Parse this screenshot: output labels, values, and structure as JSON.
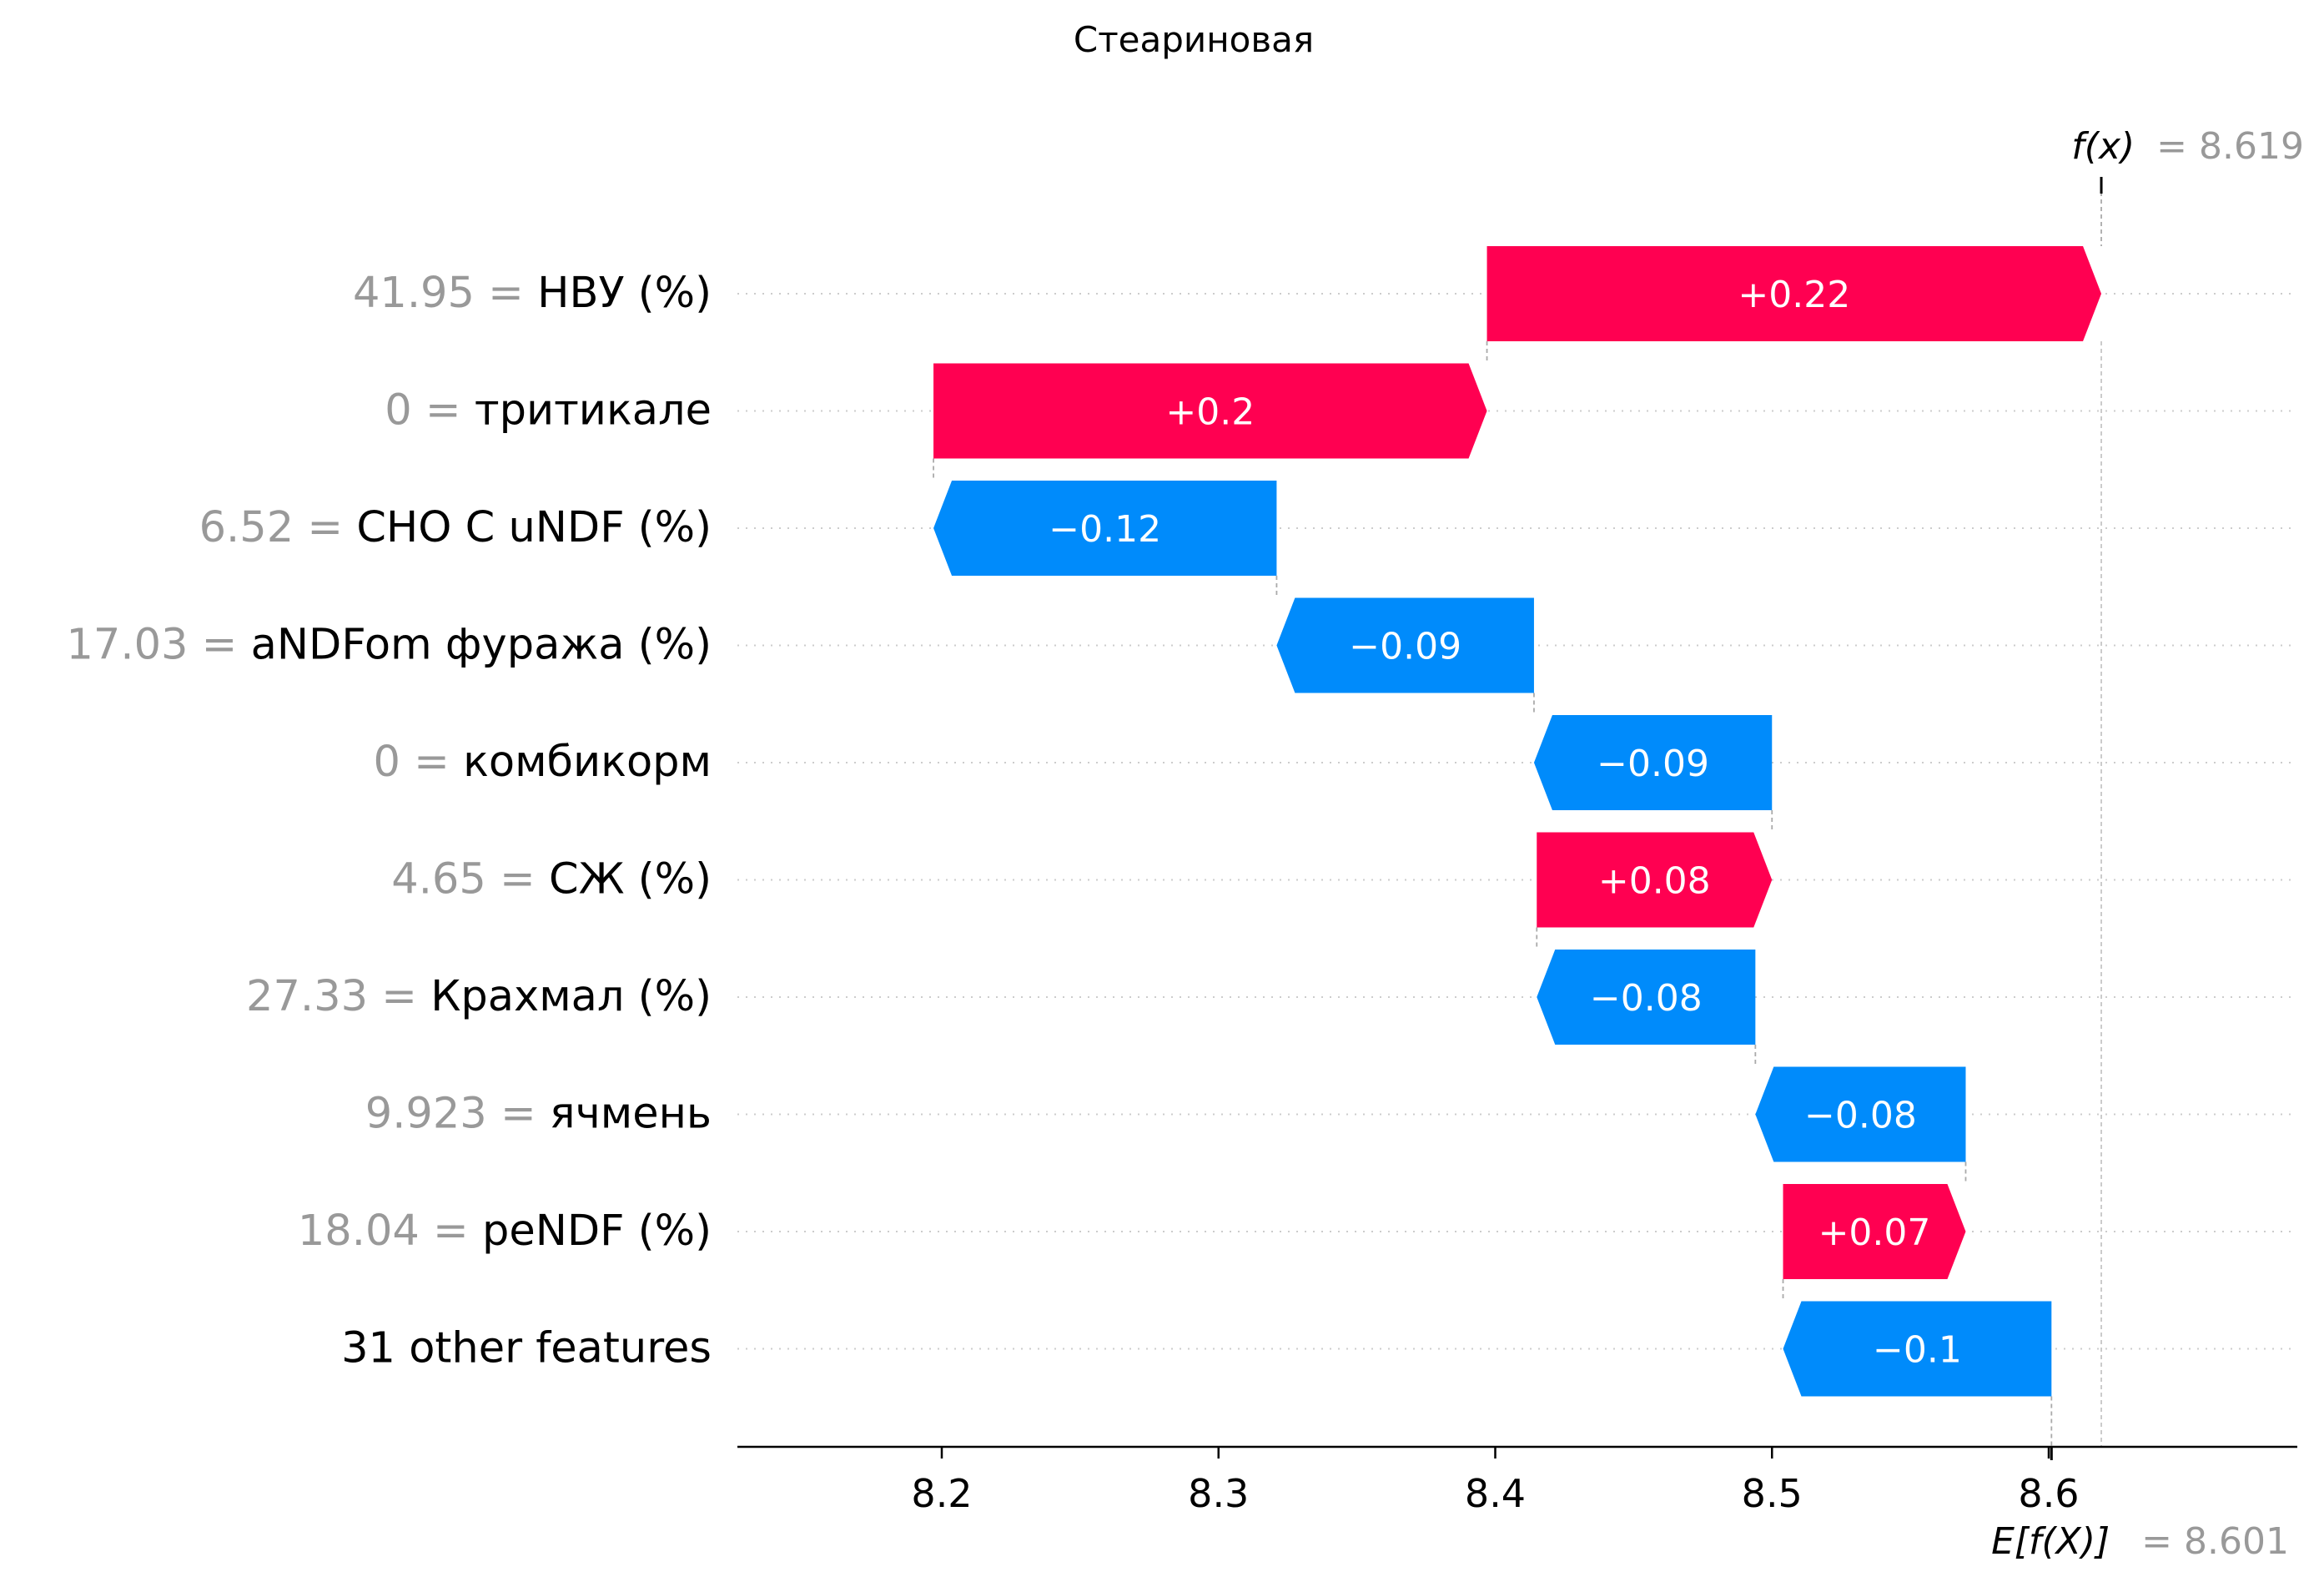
{
  "chart_data": {
    "type": "waterfall",
    "title": "Стеариновая",
    "base_value": 8.601,
    "base_label_prefix": "E[f(X)]",
    "base_label_value": "= 8.601",
    "output_value": 8.619,
    "output_label_prefix": "f(x)",
    "output_label_value": "= 8.619",
    "xlim": [
      8.125,
      8.69
    ],
    "x_ticks": [
      8.2,
      8.3,
      8.4,
      8.5,
      8.6
    ],
    "x_tick_labels": [
      "8.2",
      "8.3",
      "8.4",
      "8.5",
      "8.6"
    ],
    "features": [
      {
        "value": "41.95",
        "name": "НВУ (%)",
        "shap": 0.222,
        "label": "+0.22",
        "start": 8.397,
        "end": 8.619
      },
      {
        "value": "0",
        "name": "тритикале",
        "shap": 0.2,
        "label": "+0.2",
        "start": 8.197,
        "end": 8.397
      },
      {
        "value": "6.52",
        "name": "CHO C uNDF (%)",
        "shap": -0.124,
        "label": "−0.12",
        "start": 8.321,
        "end": 8.197
      },
      {
        "value": "17.03",
        "name": "aNDFom фуража (%)",
        "shap": -0.093,
        "label": "−0.09",
        "start": 8.414,
        "end": 8.321
      },
      {
        "value": "0",
        "name": "комбикорм",
        "shap": -0.086,
        "label": "−0.09",
        "start": 8.5,
        "end": 8.414
      },
      {
        "value": "4.65",
        "name": "СЖ (%)",
        "shap": 0.085,
        "label": "+0.08",
        "start": 8.415,
        "end": 8.5
      },
      {
        "value": "27.33",
        "name": "Крахмал (%)",
        "shap": -0.079,
        "label": "−0.08",
        "start": 8.494,
        "end": 8.415
      },
      {
        "value": "9.923",
        "name": "ячмень",
        "shap": -0.076,
        "label": "−0.08",
        "start": 8.57,
        "end": 8.494
      },
      {
        "value": "18.04",
        "name": "peNDF (%)",
        "shap": 0.066,
        "label": "+0.07",
        "start": 8.504,
        "end": 8.57
      },
      {
        "value": "",
        "name": "31 other features",
        "shap": -0.097,
        "label": "−0.1",
        "start": 8.601,
        "end": 8.504
      }
    ],
    "colors": {
      "positive": "#ff0051",
      "negative": "#008bfb",
      "value_text": "#999999",
      "text": "#000000"
    }
  }
}
